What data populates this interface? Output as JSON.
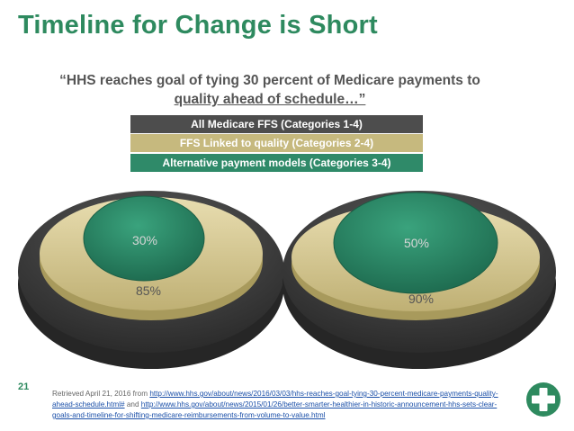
{
  "title": "Timeline for Change is Short",
  "quote": {
    "line1": "“HHS reaches goal of tying 30 percent of Medicare payments to",
    "line2": "quality ahead of schedule…”"
  },
  "legend": [
    {
      "label": "All Medicare FFS (Categories 1-4)",
      "color": "#4d4d4d"
    },
    {
      "label": "FFS Linked to quality (Categories 2-4)",
      "color": "#c6b97e"
    },
    {
      "label": "Alternative payment models (Categories 3-4)",
      "color": "#2f8a69"
    }
  ],
  "diagrams": [
    {
      "inner_label": "30%",
      "middle_label": "85%"
    },
    {
      "inner_label": "50%",
      "middle_label": "90%"
    }
  ],
  "page_number": "21",
  "reference": {
    "prefix": "Retrieved April 21, 2016 from ",
    "link1": "http://www.hhs.gov/about/news/2016/03/03/hhs-reaches-goal-tying-30-percent-medicare-payments-quality-ahead-schedule.html#",
    "joiner": " and ",
    "link2": "http://www.hhs.gov/about/news/2015/01/26/better-smarter-healthier-in-historic-announcement-hhs-sets-clear-goals-and-timeline-for-shifting-medicare-reimbursements-from-volume-to-value.html"
  },
  "colors": {
    "title": "#2e8a5f",
    "outer_disk": "#3d3d3d",
    "middle_disk": "#d9cd95",
    "inner_disk": "#2f8a69",
    "logo": "#2e8a5f"
  },
  "icons": {
    "logo": "medical-cross-icon"
  }
}
